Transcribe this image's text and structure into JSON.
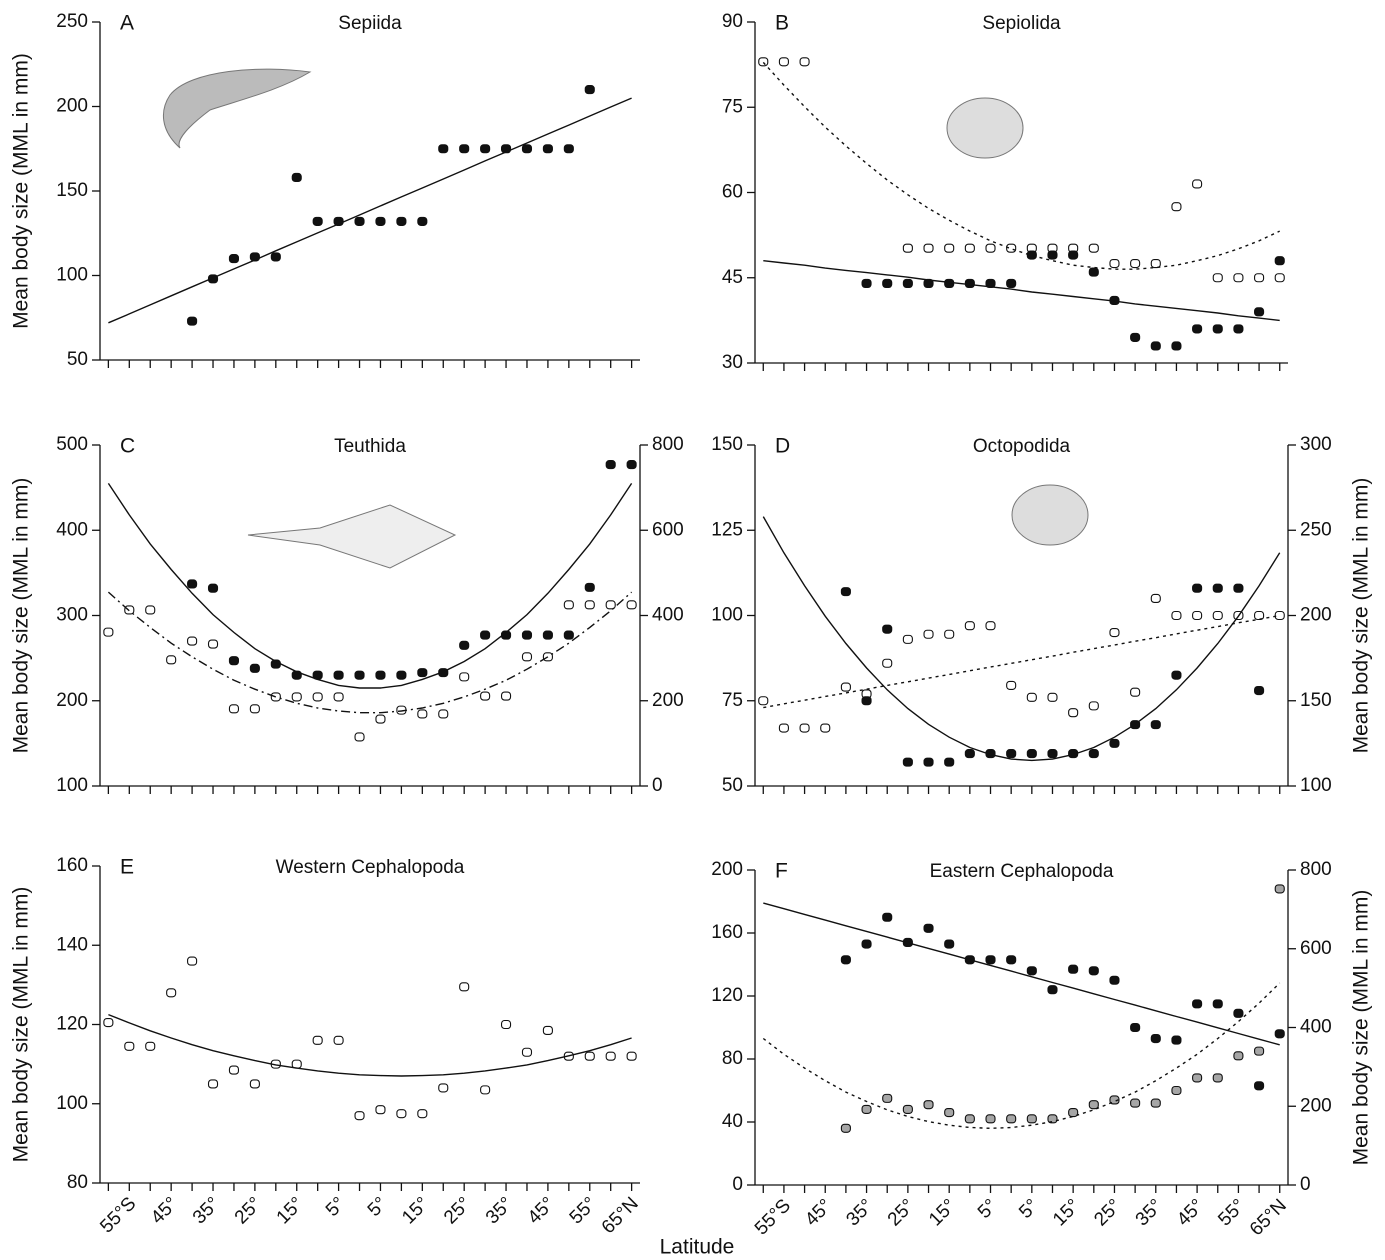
{
  "xlabel": "Latitude",
  "chart_data": [
    {
      "type": "scatter",
      "letter": "A",
      "title": "Sepiida",
      "ylabel": "Mean body size (MML in mm)",
      "x": [
        -60,
        -55,
        -50,
        -45,
        -40,
        -35,
        -30,
        -25,
        -20,
        -15,
        -10,
        -5,
        0,
        5,
        10,
        15,
        20,
        25,
        30,
        35,
        40,
        45,
        50,
        55,
        60,
        65
      ],
      "xlim": [
        -62,
        67
      ],
      "xticks": [
        -60,
        -55,
        -50,
        -45,
        -40,
        -35,
        -30,
        -25,
        -20,
        -15,
        -10,
        -5,
        0,
        5,
        10,
        15,
        20,
        25,
        30,
        35,
        40,
        45,
        50,
        55,
        60,
        65
      ],
      "ylim": [
        50,
        250
      ],
      "yticks": [
        50,
        100,
        150,
        200,
        250
      ],
      "series": [
        {
          "marker": "square",
          "color": "#111111",
          "values": [
            null,
            null,
            null,
            null,
            73,
            98,
            110,
            111,
            111,
            158,
            132,
            132,
            132,
            132,
            132,
            132,
            175,
            175,
            175,
            175,
            175,
            175,
            175,
            210,
            null,
            null
          ]
        },
        {
          "line": "solid",
          "color": "#111111",
          "values": [
            72,
            77.3,
            82.6,
            88,
            93.3,
            98.6,
            103.9,
            109.2,
            114.6,
            119.9,
            125.2,
            130.5,
            135.8,
            141.2,
            146.5,
            151.8,
            157.1,
            162.4,
            167.8,
            173.1,
            178.4,
            183.7,
            189,
            194.4,
            199.7,
            205
          ]
        }
      ]
    },
    {
      "type": "scatter",
      "letter": "B",
      "title": "Sepiolida",
      "x": [
        -60,
        -55,
        -50,
        -45,
        -40,
        -35,
        -30,
        -25,
        -20,
        -15,
        -10,
        -5,
        0,
        5,
        10,
        15,
        20,
        25,
        30,
        35,
        40,
        45,
        50,
        55,
        60,
        65
      ],
      "xlim": [
        -62,
        67
      ],
      "xticks": [
        -60,
        -55,
        -50,
        -45,
        -40,
        -35,
        -30,
        -25,
        -20,
        -15,
        -10,
        -5,
        0,
        5,
        10,
        15,
        20,
        25,
        30,
        35,
        40,
        45,
        50,
        55,
        60,
        65
      ],
      "ylim": [
        30,
        90
      ],
      "yticks": [
        30,
        45,
        60,
        75,
        90
      ],
      "series": [
        {
          "marker": "square",
          "color": "#ffffff",
          "values": [
            83,
            83,
            83,
            null,
            null,
            null,
            null,
            50.2,
            50.2,
            50.2,
            50.2,
            50.2,
            50.2,
            50.2,
            50.2,
            50.2,
            50.2,
            47.5,
            47.5,
            47.5,
            57.5,
            61.5,
            45,
            45,
            45,
            45
          ]
        },
        {
          "marker": "square",
          "color": "#111111",
          "values": [
            null,
            null,
            null,
            null,
            null,
            44,
            44,
            44,
            44,
            44,
            44,
            44,
            44,
            49,
            49,
            49,
            46,
            41,
            34.5,
            33,
            33,
            36,
            36,
            36,
            39,
            48
          ]
        },
        {
          "line": "solid",
          "color": "#111111",
          "values": [
            48,
            47.6,
            47.2,
            46.7,
            46.3,
            45.9,
            45.5,
            45.1,
            44.6,
            44.2,
            43.8,
            43.4,
            43,
            42.5,
            42.1,
            41.7,
            41.3,
            40.9,
            40.4,
            40,
            39.6,
            39.2,
            38.8,
            38.3,
            37.9,
            37.5
          ]
        },
        {
          "line": "dotted",
          "color": "#111111",
          "values": [
            82.9,
            78.9,
            75.1,
            71.5,
            68.2,
            65.1,
            62.2,
            59.6,
            57.2,
            55.1,
            53.2,
            51.5,
            50.1,
            48.9,
            48,
            47.2,
            46.8,
            46.5,
            46.5,
            46.8,
            47.2,
            48,
            48.9,
            50.1,
            51.5,
            53.2
          ]
        }
      ]
    },
    {
      "type": "scatter",
      "letter": "C",
      "title": "Teuthida",
      "ylabel": "Mean body size (MML in mm)",
      "x": [
        -60,
        -55,
        -50,
        -45,
        -40,
        -35,
        -30,
        -25,
        -20,
        -15,
        -10,
        -5,
        0,
        5,
        10,
        15,
        20,
        25,
        30,
        35,
        40,
        45,
        50,
        55,
        60,
        65
      ],
      "xlim": [
        -62,
        67
      ],
      "xticks": [
        -60,
        -55,
        -50,
        -45,
        -40,
        -35,
        -30,
        -25,
        -20,
        -15,
        -10,
        -5,
        0,
        5,
        10,
        15,
        20,
        25,
        30,
        35,
        40,
        45,
        50,
        55,
        60,
        65
      ],
      "ylim": [
        100,
        500
      ],
      "yticks": [
        100,
        200,
        300,
        400,
        500
      ],
      "y2lim": [
        0,
        800
      ],
      "y2ticks": [
        0,
        200,
        400,
        600,
        800
      ],
      "series": [
        {
          "marker": "square",
          "color": "#ffffff",
          "axis": "y2",
          "values": [
            361,
            413,
            413,
            296,
            340,
            333,
            181,
            181,
            209,
            209,
            209,
            209,
            115,
            157,
            178,
            169,
            169,
            256,
            211,
            211,
            303,
            303,
            425,
            425,
            425,
            425
          ]
        },
        {
          "marker": "square",
          "color": "#111111",
          "values": [
            null,
            null,
            null,
            null,
            337,
            332,
            247,
            238,
            243,
            230,
            230,
            230,
            230,
            230,
            230,
            233,
            233,
            265,
            277,
            277,
            277,
            277,
            277,
            333,
            477,
            477
          ]
        },
        {
          "line": "solid",
          "color": "#111111",
          "values": [
            455,
            418,
            384,
            354,
            326,
            301,
            280,
            261,
            246,
            234,
            225,
            218,
            215,
            215,
            218,
            225,
            234,
            246,
            261,
            280,
            301,
            326,
            354,
            384,
            418,
            455
          ]
        },
        {
          "line": "dashdot",
          "color": "#111111",
          "axis": "y2",
          "values": [
            455,
            411,
            372,
            335,
            303,
            274,
            248,
            227,
            209,
            194,
            183,
            176,
            172,
            172,
            176,
            183,
            194,
            209,
            227,
            248,
            274,
            303,
            335,
            372,
            411,
            455
          ]
        }
      ]
    },
    {
      "type": "scatter",
      "letter": "D",
      "title": "Octopodida",
      "y2label": "Mean body size (MML in mm)",
      "x": [
        -60,
        -55,
        -50,
        -45,
        -40,
        -35,
        -30,
        -25,
        -20,
        -15,
        -10,
        -5,
        0,
        5,
        10,
        15,
        20,
        25,
        30,
        35,
        40,
        45,
        50,
        55,
        60,
        65
      ],
      "xlim": [
        -62,
        67
      ],
      "xticks": [
        -60,
        -55,
        -50,
        -45,
        -40,
        -35,
        -30,
        -25,
        -20,
        -15,
        -10,
        -5,
        0,
        5,
        10,
        15,
        20,
        25,
        30,
        35,
        40,
        45,
        50,
        55,
        60,
        65
      ],
      "ylim": [
        50,
        150
      ],
      "yticks": [
        50,
        75,
        100,
        125,
        150
      ],
      "y2lim": [
        100,
        300
      ],
      "y2ticks": [
        100,
        150,
        200,
        250,
        300
      ],
      "series": [
        {
          "marker": "square",
          "color": "#ffffff",
          "axis": "y2",
          "values": [
            150,
            134,
            134,
            134,
            158,
            154,
            172,
            186,
            189,
            189,
            194,
            194,
            159,
            152,
            152,
            143,
            147,
            190,
            155,
            210,
            200,
            200,
            200,
            200,
            200,
            200
          ]
        },
        {
          "marker": "square",
          "color": "#111111",
          "values": [
            null,
            null,
            null,
            null,
            107,
            75,
            96,
            57,
            57,
            57,
            59.5,
            59.5,
            59.5,
            59.5,
            59.5,
            59.5,
            59.5,
            62.5,
            68,
            68,
            82.5,
            108,
            108,
            108,
            78,
            null
          ]
        },
        {
          "line": "solid",
          "color": "#111111",
          "values": [
            129,
            118.4,
            108.7,
            99.8,
            91.8,
            84.6,
            78.2,
            72.7,
            68.1,
            64.3,
            61.3,
            59.2,
            57.9,
            57.5,
            57.9,
            59.2,
            61.3,
            64.3,
            68.1,
            72.7,
            78.2,
            84.6,
            91.8,
            99.8,
            108.7,
            118.4
          ]
        },
        {
          "line": "dotted",
          "color": "#111111",
          "axis": "y2",
          "values": [
            146,
            148.2,
            150.3,
            152.5,
            154.6,
            156.8,
            159,
            161.1,
            163.3,
            165.4,
            167.6,
            169.8,
            171.9,
            174.1,
            176.2,
            178.4,
            180.6,
            182.7,
            184.9,
            187,
            189.2,
            191.4,
            193.5,
            195.7,
            197.8,
            200
          ]
        }
      ]
    },
    {
      "type": "scatter",
      "letter": "E",
      "title": "Western Cephalopoda",
      "ylabel": "Mean body size (MML in mm)",
      "x": [
        -60,
        -55,
        -50,
        -45,
        -40,
        -35,
        -30,
        -25,
        -20,
        -15,
        -10,
        -5,
        0,
        5,
        10,
        15,
        20,
        25,
        30,
        35,
        40,
        45,
        50,
        55,
        60,
        65
      ],
      "xlim": [
        -62,
        67
      ],
      "xticks": [
        -60,
        {
          "value": -55,
          "label": "55°S"
        },
        -50,
        {
          "value": -45,
          "label": "45°"
        },
        -40,
        {
          "value": -35,
          "label": "35°"
        },
        -30,
        {
          "value": -25,
          "label": "25°"
        },
        -20,
        {
          "value": -15,
          "label": "15°"
        },
        -10,
        {
          "value": -5,
          "label": "5°"
        },
        0,
        {
          "value": 5,
          "label": "5°"
        },
        10,
        {
          "value": 15,
          "label": "15°"
        },
        20,
        {
          "value": 25,
          "label": "25°"
        },
        30,
        {
          "value": 35,
          "label": "35°"
        },
        40,
        {
          "value": 45,
          "label": "45°"
        },
        50,
        {
          "value": 55,
          "label": "55°"
        },
        60,
        {
          "value": 65,
          "label": "65°N"
        }
      ],
      "ylim": [
        80,
        160
      ],
      "yticks": [
        80,
        100,
        120,
        140,
        160
      ],
      "series": [
        {
          "marker": "square",
          "color": "#ffffff",
          "values": [
            120.5,
            114.5,
            114.5,
            128,
            136,
            105,
            108.5,
            105,
            110,
            110,
            116,
            116,
            97,
            98.5,
            97.5,
            97.5,
            104,
            129.5,
            103.5,
            120,
            113,
            118.5,
            112,
            112,
            112,
            112
          ]
        },
        {
          "line": "solid",
          "color": "#111111",
          "values": [
            122.5,
            120.4,
            118.4,
            116.6,
            114.9,
            113.4,
            112.1,
            110.9,
            109.8,
            109,
            108.3,
            107.7,
            107.3,
            107.1,
            107,
            107.1,
            107.3,
            107.7,
            108.3,
            109,
            109.8,
            110.9,
            112.1,
            113.4,
            114.9,
            116.6
          ]
        }
      ]
    },
    {
      "type": "scatter",
      "letter": "F",
      "title": "Eastern Cephalopoda",
      "y2label": "Mean body size (MML in mm)",
      "x": [
        -60,
        -55,
        -50,
        -45,
        -40,
        -35,
        -30,
        -25,
        -20,
        -15,
        -10,
        -5,
        0,
        5,
        10,
        15,
        20,
        25,
        30,
        35,
        40,
        45,
        50,
        55,
        60,
        65
      ],
      "xlim": [
        -62,
        67
      ],
      "xticks": [
        -60,
        {
          "value": -55,
          "label": "55°S"
        },
        -50,
        {
          "value": -45,
          "label": "45°"
        },
        -40,
        {
          "value": -35,
          "label": "35°"
        },
        -30,
        {
          "value": -25,
          "label": "25°"
        },
        -20,
        {
          "value": -15,
          "label": "15°"
        },
        -10,
        {
          "value": -5,
          "label": "5°"
        },
        0,
        {
          "value": 5,
          "label": "5°"
        },
        10,
        {
          "value": 15,
          "label": "15°"
        },
        20,
        {
          "value": 25,
          "label": "25°"
        },
        30,
        {
          "value": 35,
          "label": "35°"
        },
        40,
        {
          "value": 45,
          "label": "45°"
        },
        50,
        {
          "value": 55,
          "label": "55°"
        },
        60,
        {
          "value": 65,
          "label": "65°N"
        }
      ],
      "ylim": [
        0,
        200
      ],
      "yticks": [
        0,
        40,
        80,
        120,
        160,
        200
      ],
      "y2lim": [
        0,
        800
      ],
      "y2ticks": [
        0,
        200,
        400,
        600,
        800
      ],
      "series": [
        {
          "marker": "square",
          "color": "#111111",
          "values": [
            null,
            null,
            null,
            null,
            143,
            153,
            170,
            154,
            163,
            153,
            143,
            143,
            143,
            136,
            124,
            137,
            136,
            130,
            100,
            93,
            92,
            115,
            115,
            109,
            63,
            96
          ]
        },
        {
          "marker": "square",
          "color": "#a6a6a6",
          "axis": "y2",
          "values": [
            null,
            null,
            null,
            null,
            144,
            192,
            220,
            192,
            204,
            184,
            168,
            168,
            168,
            168,
            168,
            184,
            204,
            216,
            208,
            208,
            240,
            272,
            272,
            328,
            340,
            752
          ]
        },
        {
          "line": "solid",
          "color": "#111111",
          "values": [
            179,
            175.4,
            171.8,
            168.2,
            164.6,
            161,
            157.4,
            153.8,
            150.2,
            146.6,
            143,
            139.4,
            135.8,
            132.2,
            128.6,
            125,
            121.4,
            117.8,
            114.2,
            110.6,
            107,
            103.4,
            99.8,
            96.2,
            92.6,
            89
          ]
        },
        {
          "line": "dotted",
          "color": "#111111",
          "axis": "y2",
          "values": [
            372,
            332,
            297,
            265,
            236,
            212,
            191,
            174,
            161,
            152,
            146,
            144,
            146,
            152,
            161,
            174,
            191,
            212,
            236,
            265,
            297,
            332,
            372,
            415,
            462,
            513
          ]
        }
      ]
    }
  ]
}
